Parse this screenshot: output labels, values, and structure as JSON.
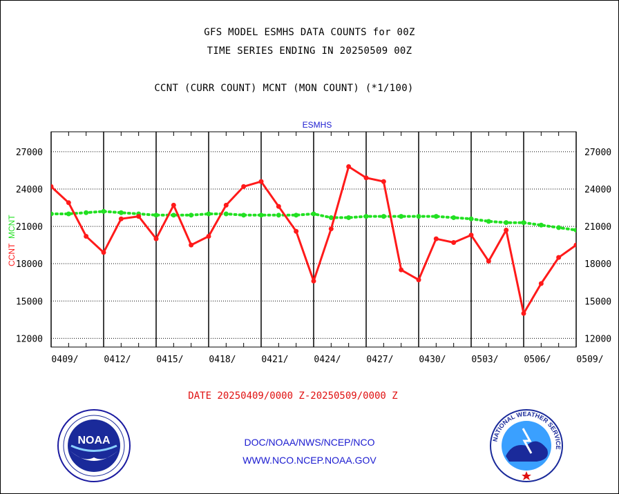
{
  "header": {
    "title_line1": "GFS MODEL ESMHS DATA COUNTS for 00Z",
    "title_line2": "TIME SERIES ENDING IN 20250509 00Z",
    "subtitle": "CCNT (CURR COUNT) MCNT (MON COUNT) (*1/100)"
  },
  "footer": {
    "date_range": "DATE 20250409/0000 Z-20250509/0000 Z",
    "org_line": "DOC/NOAA/NWS/NCEP/NCO",
    "url_line": "WWW.NCO.NCEP.NOAA.GOV",
    "noaa_logo_text": "NOAA",
    "nws_logo_text": "NATIONAL WEATHER SERVICE"
  },
  "colors": {
    "ccnt": "#ff1a1a",
    "mcnt": "#22e022",
    "axis": "#000000",
    "title_blue": "#1a1ad0"
  },
  "chart_data": {
    "type": "line",
    "title": "ESMHS",
    "ylabel_series": [
      "CCNT",
      "MCNT"
    ],
    "x_tick_labels": [
      "0409/",
      "0412/",
      "0415/",
      "0418/",
      "0421/",
      "0424/",
      "0427/",
      "0430/",
      "0503/",
      "0506/",
      "0509/"
    ],
    "y_ticks": [
      12000,
      15000,
      18000,
      21000,
      24000,
      27000
    ],
    "ylim": [
      11300,
      28600
    ],
    "xlim": [
      0,
      30
    ],
    "grid": true,
    "series": [
      {
        "name": "CCNT",
        "color": "#ff1a1a",
        "values": [
          24200,
          22900,
          20200,
          18900,
          21600,
          21800,
          20000,
          22700,
          19500,
          20200,
          22700,
          24200,
          24600,
          22600,
          20600,
          16600,
          20800,
          25800,
          24900,
          24600,
          17500,
          16700,
          20000,
          19700,
          20300,
          18200,
          20700,
          14000,
          16400,
          18500,
          19500
        ]
      },
      {
        "name": "MCNT",
        "color": "#22e022",
        "values": [
          22000,
          22000,
          22100,
          22200,
          22100,
          22000,
          21900,
          21900,
          21900,
          22000,
          22000,
          21900,
          21900,
          21900,
          21900,
          22000,
          21700,
          21700,
          21800,
          21800,
          21800,
          21800,
          21800,
          21700,
          21600,
          21400,
          21300,
          21300,
          21100,
          20900,
          20700
        ]
      }
    ]
  }
}
